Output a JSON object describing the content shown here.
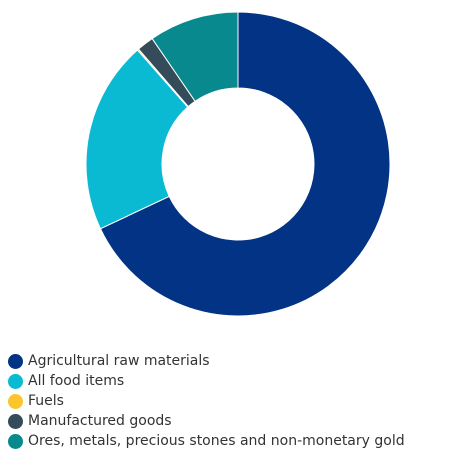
{
  "chart_data": {
    "type": "pie",
    "subtype": "donut",
    "title": "",
    "legend_position": "bottom-left",
    "series": [
      {
        "name": "Agricultural raw materials",
        "value": 68.0,
        "color": "#033384"
      },
      {
        "name": "All food items",
        "value": 20.5,
        "color": "#0ABAD3"
      },
      {
        "name": "Fuels",
        "value": 0.15,
        "color": "#FBC530"
      },
      {
        "name": "Manufactured goods",
        "value": 1.8,
        "color": "#344B5A"
      },
      {
        "name": "Ores, metals, precious stones and non-monetary gold",
        "value": 9.55,
        "color": "#07898E"
      }
    ]
  }
}
